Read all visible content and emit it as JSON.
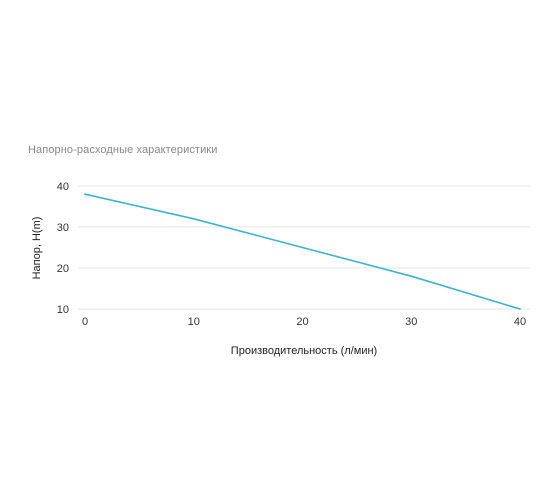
{
  "chart_data": {
    "type": "line",
    "title": "Напорно-расходные характеристики",
    "xlabel": "Производительность (л/мин)",
    "ylabel": "Напор, H(m)",
    "x_ticks": [
      0,
      10,
      20,
      30,
      40
    ],
    "y_ticks": [
      10,
      20,
      30,
      40
    ],
    "xlim": [
      0,
      40
    ],
    "ylim": [
      10,
      40
    ],
    "grid": true,
    "legend": "none",
    "series": [
      {
        "color": "#3cb4c8",
        "x": [
          0,
          10,
          20,
          30,
          40
        ],
        "y": [
          38,
          32,
          25,
          18,
          10
        ]
      }
    ]
  }
}
